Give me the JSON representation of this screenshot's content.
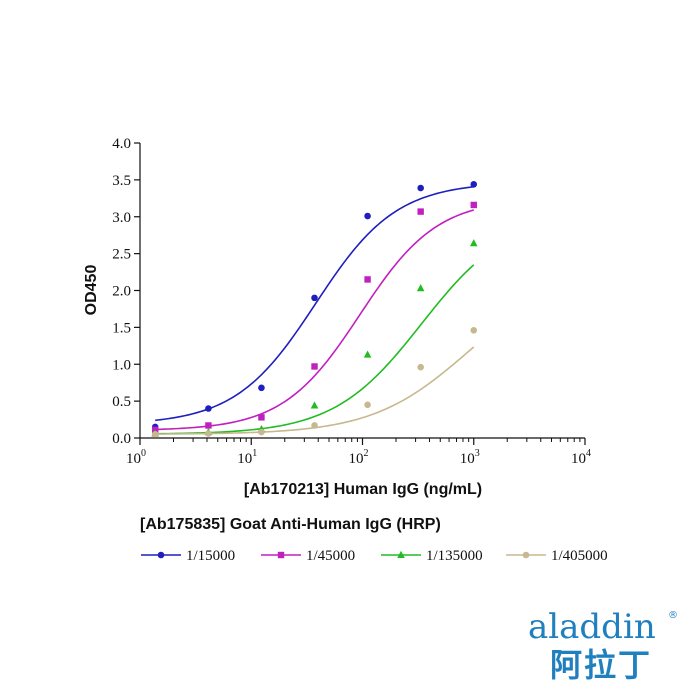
{
  "chart_data": {
    "type": "line",
    "xscale": "log",
    "xlim": [
      1,
      10000
    ],
    "ylim": [
      0,
      4.0
    ],
    "x_ticks": [
      {
        "base": "10",
        "exp": "0",
        "value": 1
      },
      {
        "base": "10",
        "exp": "1",
        "value": 10
      },
      {
        "base": "10",
        "exp": "2",
        "value": 100
      },
      {
        "base": "10",
        "exp": "3",
        "value": 1000
      },
      {
        "base": "10",
        "exp": "4",
        "value": 10000
      }
    ],
    "y_ticks": [
      "0.0",
      "0.5",
      "1.0",
      "1.5",
      "2.0",
      "2.5",
      "3.0",
      "3.5",
      "4.0"
    ],
    "xlabel": "[Ab170213] Human IgG (ng/mL)",
    "ylabel": "OD450",
    "subtitle": "[Ab175835] Goat Anti-Human IgG (HRP)",
    "legend_position": "bottom",
    "x": [
      1.37,
      4.12,
      12.35,
      37.04,
      111.1,
      333.3,
      1000
    ],
    "series": [
      {
        "name": "1/15000",
        "marker": "circle",
        "color": "#1f1fbf",
        "values": [
          0.15,
          0.4,
          0.68,
          1.9,
          3.01,
          3.39,
          3.44
        ],
        "fit": {
          "bottom": 0.18,
          "top": 3.47,
          "ec50": 38,
          "hill": 1.2
        }
      },
      {
        "name": "1/45000",
        "marker": "square",
        "color": "#c020c0",
        "values": [
          0.11,
          0.17,
          0.28,
          0.97,
          2.15,
          3.07,
          3.16
        ],
        "fit": {
          "bottom": 0.1,
          "top": 3.25,
          "ec50": 95,
          "hill": 1.25
        }
      },
      {
        "name": "1/135000",
        "marker": "triangle",
        "color": "#22bb22",
        "values": [
          0.06,
          0.08,
          0.12,
          0.44,
          1.13,
          2.03,
          2.64
        ],
        "fit": {
          "bottom": 0.05,
          "top": 3.05,
          "ec50": 340,
          "hill": 1.1
        }
      },
      {
        "name": "1/405000",
        "marker": "circle",
        "color": "#c8b890",
        "values": [
          0.05,
          0.06,
          0.08,
          0.17,
          0.45,
          0.96,
          1.46
        ],
        "fit": {
          "bottom": 0.05,
          "top": 2.3,
          "ec50": 900,
          "hill": 1.0
        }
      }
    ]
  },
  "logo": {
    "brand_en": "aladdin",
    "brand_zh": "阿拉丁",
    "registered": "®",
    "color": "#1f7fbf"
  }
}
